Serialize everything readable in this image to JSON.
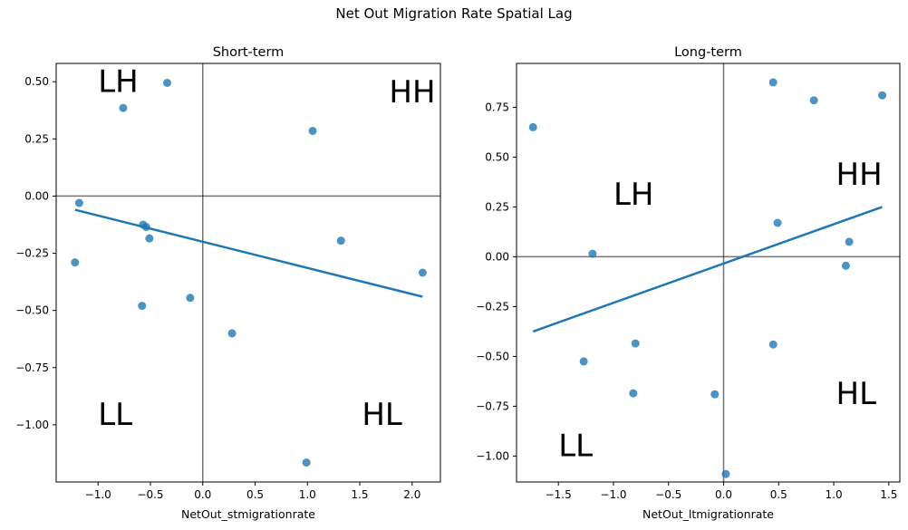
{
  "figure": {
    "title": "Net Out Migration Rate Spatial Lag"
  },
  "colors": {
    "point": "#1f77b4",
    "line": "#1f77b4",
    "ref_line": "#000000"
  },
  "chart_data": [
    {
      "type": "scatter",
      "title": "Short-term",
      "xlabel": "NetOut_stmigrationrate",
      "ylabel": "",
      "xlim": [
        -1.4,
        2.27
      ],
      "ylim": [
        -1.25,
        0.58
      ],
      "xticks": [
        -1.0,
        -0.5,
        0.0,
        0.5,
        1.0,
        1.5,
        2.0
      ],
      "xtick_labels": [
        "−1.0",
        "−0.5",
        "0.0",
        "0.5",
        "1.0",
        "1.5",
        "2.0"
      ],
      "yticks": [
        0.5,
        0.25,
        0.0,
        -0.25,
        -0.5,
        -0.75,
        -1.0
      ],
      "ytick_labels": [
        "0.50",
        "0.25",
        "0.00",
        "−0.25",
        "−0.50",
        "−0.75",
        "−1.00"
      ],
      "points": [
        {
          "x": -1.22,
          "y": -0.29
        },
        {
          "x": -1.18,
          "y": -0.03
        },
        {
          "x": -0.76,
          "y": 0.385
        },
        {
          "x": -0.34,
          "y": 0.495
        },
        {
          "x": -0.57,
          "y": -0.125
        },
        {
          "x": -0.54,
          "y": -0.135
        },
        {
          "x": -0.51,
          "y": -0.185
        },
        {
          "x": -0.58,
          "y": -0.48
        },
        {
          "x": -0.12,
          "y": -0.445
        },
        {
          "x": 0.28,
          "y": -0.6
        },
        {
          "x": 1.05,
          "y": 0.285
        },
        {
          "x": 1.32,
          "y": -0.195
        },
        {
          "x": 0.99,
          "y": -1.165
        },
        {
          "x": 2.1,
          "y": -0.335
        }
      ],
      "regression": {
        "x": [
          -1.22,
          2.1
        ],
        "y": [
          -0.06,
          -0.44
        ]
      },
      "ref_lines": {
        "x": 0,
        "y": 0
      },
      "quadrants": [
        {
          "label": "LH",
          "x": -1.0,
          "y": 0.455
        },
        {
          "label": "HH",
          "x": 1.78,
          "y": 0.41
        },
        {
          "label": "LL",
          "x": -1.0,
          "y": -1.0
        },
        {
          "label": "HL",
          "x": 1.52,
          "y": -1.0
        }
      ]
    },
    {
      "type": "scatter",
      "title": "Long-term",
      "xlabel": "NetOut_ltmigrationrate",
      "ylabel": "",
      "xlim": [
        -1.88,
        1.6
      ],
      "ylim": [
        -1.13,
        0.97
      ],
      "xticks": [
        -1.5,
        -1.0,
        -0.5,
        0.0,
        0.5,
        1.0,
        1.5
      ],
      "xtick_labels": [
        "−1.5",
        "−1.0",
        "−0.5",
        "0.0",
        "0.5",
        "1.0",
        "1.5"
      ],
      "yticks": [
        0.75,
        0.5,
        0.25,
        0.0,
        -0.25,
        -0.5,
        -0.75,
        -1.0
      ],
      "ytick_labels": [
        "0.75",
        "0.50",
        "0.25",
        "0.00",
        "−0.25",
        "−0.50",
        "−0.75",
        "−1.00"
      ],
      "points": [
        {
          "x": -1.73,
          "y": 0.65
        },
        {
          "x": -1.19,
          "y": 0.015
        },
        {
          "x": -1.27,
          "y": -0.525
        },
        {
          "x": -0.8,
          "y": -0.435
        },
        {
          "x": -0.82,
          "y": -0.685
        },
        {
          "x": -0.08,
          "y": -0.69
        },
        {
          "x": 0.02,
          "y": -1.09
        },
        {
          "x": 0.45,
          "y": 0.875
        },
        {
          "x": 0.82,
          "y": 0.785
        },
        {
          "x": 1.44,
          "y": 0.81
        },
        {
          "x": 0.49,
          "y": 0.17
        },
        {
          "x": 1.14,
          "y": 0.075
        },
        {
          "x": 1.11,
          "y": -0.045
        },
        {
          "x": 0.45,
          "y": -0.44
        }
      ],
      "regression": {
        "x": [
          -1.73,
          1.44
        ],
        "y": [
          -0.375,
          0.25
        ]
      },
      "ref_lines": {
        "x": 0,
        "y": 0
      },
      "quadrants": [
        {
          "label": "LH",
          "x": -1.0,
          "y": 0.26
        },
        {
          "label": "HH",
          "x": 1.02,
          "y": 0.36
        },
        {
          "label": "LL",
          "x": -1.5,
          "y": -1.0
        },
        {
          "label": "HL",
          "x": 1.02,
          "y": -0.74
        }
      ]
    }
  ]
}
